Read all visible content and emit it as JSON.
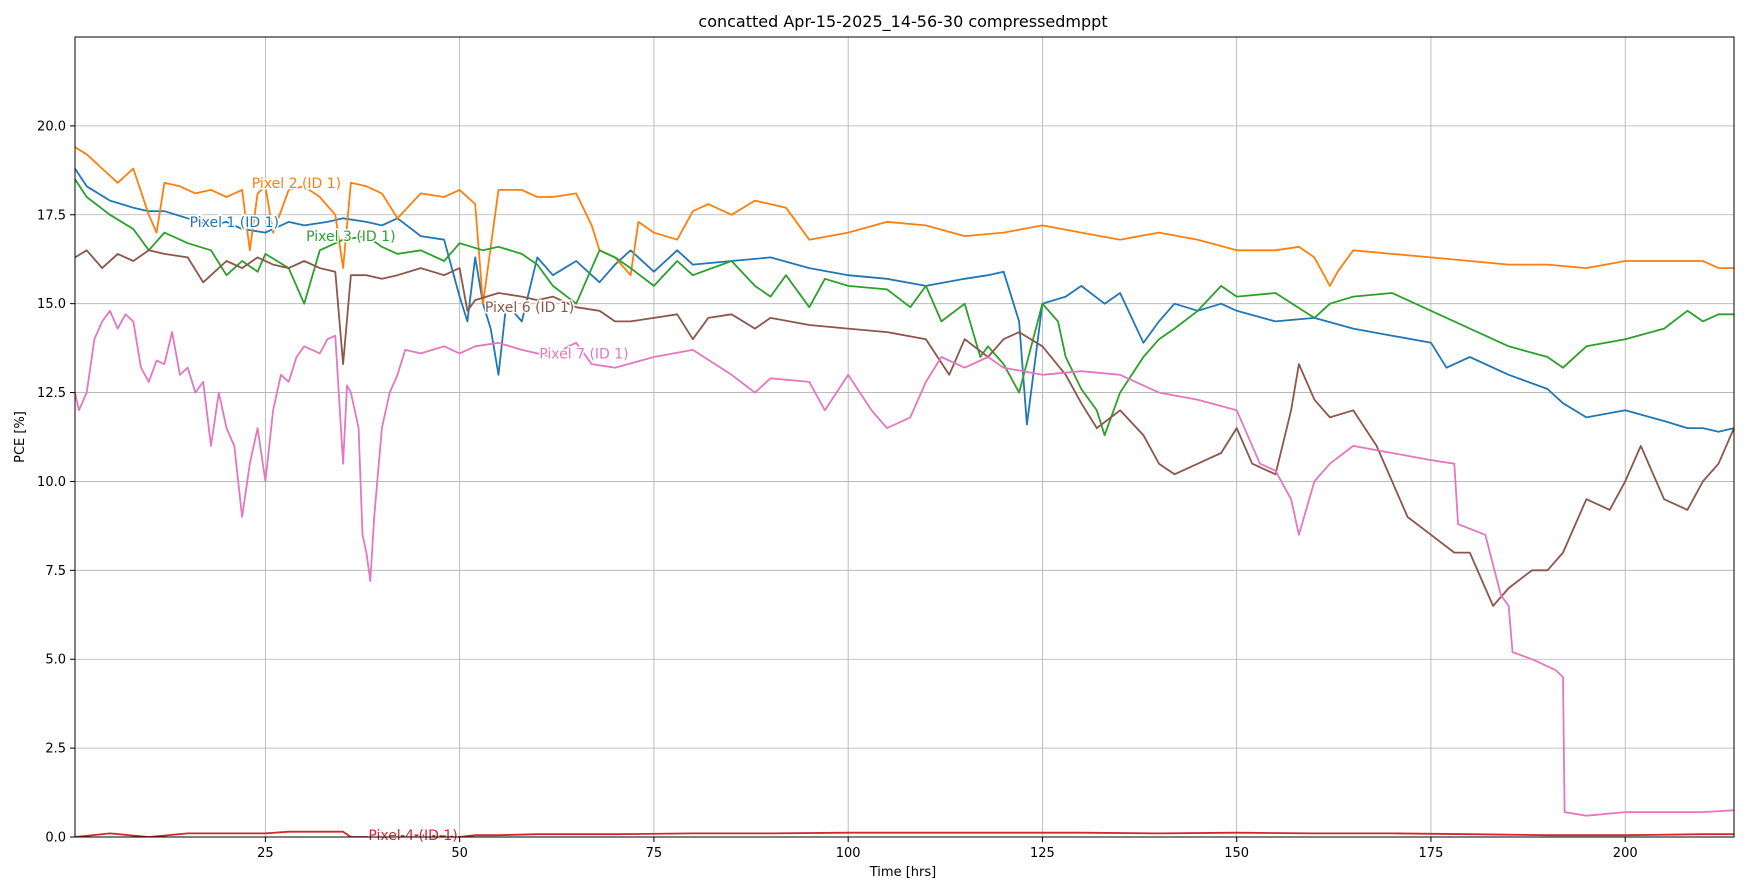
{
  "chart_data": {
    "type": "line",
    "title": "concatted Apr-15-2025_14-56-30 compressedmppt",
    "xlabel": "Time [hrs]",
    "ylabel": "PCE [%]",
    "xlim": [
      0.5,
      214
    ],
    "ylim": [
      0,
      22.5
    ],
    "xticks": [
      25,
      50,
      75,
      100,
      125,
      150,
      175,
      200
    ],
    "yticks": [
      0.0,
      2.5,
      5.0,
      7.5,
      10.0,
      12.5,
      15.0,
      17.5,
      20.0
    ],
    "grid": true,
    "legend": "none (inline labels on lines)",
    "series": [
      {
        "name": "Pixel 1 (ID 1)",
        "color": "#1f77b4",
        "label_at": [
          21,
          17.3
        ],
        "x": [
          0.5,
          2,
          5,
          8,
          10,
          12,
          15,
          18,
          20,
          22,
          25,
          28,
          30,
          33,
          35,
          38,
          40,
          42,
          45,
          48,
          50,
          51,
          52,
          53,
          54,
          55,
          56,
          58,
          60,
          62,
          65,
          68,
          70,
          72,
          75,
          78,
          80,
          85,
          90,
          95,
          100,
          105,
          110,
          115,
          118,
          120,
          122,
          123,
          125,
          128,
          130,
          133,
          135,
          138,
          140,
          142,
          145,
          148,
          150,
          155,
          160,
          165,
          170,
          175,
          177,
          180,
          185,
          190,
          192,
          195,
          200,
          205,
          208,
          210,
          212,
          214
        ],
        "y": [
          18.8,
          18.3,
          17.9,
          17.7,
          17.6,
          17.6,
          17.4,
          17.2,
          17.3,
          17.1,
          17.0,
          17.3,
          17.2,
          17.3,
          17.4,
          17.3,
          17.2,
          17.4,
          16.9,
          16.8,
          15.2,
          14.5,
          16.3,
          15.0,
          14.3,
          13.0,
          15.0,
          14.5,
          16.3,
          15.8,
          16.2,
          15.6,
          16.1,
          16.5,
          15.9,
          16.5,
          16.1,
          16.2,
          16.3,
          16.0,
          15.8,
          15.7,
          15.5,
          15.7,
          15.8,
          15.9,
          14.5,
          11.6,
          15.0,
          15.2,
          15.5,
          15.0,
          15.3,
          13.9,
          14.5,
          15.0,
          14.8,
          15.0,
          14.8,
          14.5,
          14.6,
          14.3,
          14.1,
          13.9,
          13.2,
          13.5,
          13.0,
          12.6,
          12.2,
          11.8,
          12.0,
          11.7,
          11.5,
          11.5,
          11.4,
          11.5
        ]
      },
      {
        "name": "Pixel 2 (ID 1)",
        "color": "#ff7f0e",
        "label_at": [
          29,
          18.4
        ],
        "x": [
          0.5,
          2,
          4,
          6,
          8,
          10,
          11,
          12,
          14,
          16,
          18,
          20,
          22,
          23,
          24,
          25,
          26,
          28,
          30,
          32,
          34,
          35,
          36,
          38,
          40,
          42,
          45,
          48,
          50,
          52,
          53,
          55,
          58,
          60,
          62,
          65,
          67,
          68,
          70,
          72,
          73,
          75,
          78,
          80,
          82,
          85,
          88,
          90,
          92,
          95,
          100,
          105,
          110,
          115,
          120,
          125,
          130,
          135,
          140,
          145,
          150,
          155,
          158,
          160,
          162,
          163,
          165,
          170,
          175,
          180,
          185,
          190,
          195,
          200,
          205,
          210,
          212,
          214
        ],
        "y": [
          19.4,
          19.2,
          18.8,
          18.4,
          18.8,
          17.5,
          17.0,
          18.4,
          18.3,
          18.1,
          18.2,
          18.0,
          18.2,
          16.5,
          18.1,
          18.3,
          17.0,
          18.2,
          18.3,
          18.0,
          17.5,
          16.0,
          18.4,
          18.3,
          18.1,
          17.4,
          18.1,
          18.0,
          18.2,
          17.8,
          15.0,
          18.2,
          18.2,
          18.0,
          18.0,
          18.1,
          17.2,
          16.5,
          16.3,
          15.8,
          17.3,
          17.0,
          16.8,
          17.6,
          17.8,
          17.5,
          17.9,
          17.8,
          17.7,
          16.8,
          17.0,
          17.3,
          17.2,
          16.9,
          17.0,
          17.2,
          17.0,
          16.8,
          17.0,
          16.8,
          16.5,
          16.5,
          16.6,
          16.3,
          15.5,
          15.9,
          16.5,
          16.4,
          16.3,
          16.2,
          16.1,
          16.1,
          16.0,
          16.2,
          16.2,
          16.2,
          16.0,
          16.0
        ]
      },
      {
        "name": "Pixel 3 (ID 1)",
        "color": "#2ca02c",
        "label_at": [
          36,
          16.9
        ],
        "x": [
          0.5,
          2,
          5,
          8,
          10,
          12,
          15,
          18,
          20,
          22,
          24,
          25,
          28,
          30,
          32,
          35,
          38,
          40,
          42,
          45,
          48,
          50,
          53,
          55,
          58,
          60,
          62,
          65,
          67,
          68,
          70,
          72,
          75,
          78,
          80,
          85,
          88,
          90,
          92,
          95,
          97,
          100,
          105,
          108,
          110,
          112,
          115,
          117,
          118,
          120,
          122,
          125,
          127,
          128,
          130,
          132,
          133,
          135,
          138,
          140,
          142,
          145,
          148,
          150,
          155,
          160,
          162,
          165,
          170,
          175,
          180,
          185,
          190,
          192,
          195,
          200,
          205,
          208,
          210,
          212,
          214
        ],
        "y": [
          18.5,
          18.0,
          17.5,
          17.1,
          16.5,
          17.0,
          16.7,
          16.5,
          15.8,
          16.2,
          15.9,
          16.4,
          16.0,
          15.0,
          16.5,
          16.8,
          16.9,
          16.6,
          16.4,
          16.5,
          16.2,
          16.7,
          16.5,
          16.6,
          16.4,
          16.1,
          15.5,
          15.0,
          16.0,
          16.5,
          16.3,
          16.0,
          15.5,
          16.2,
          15.8,
          16.2,
          15.5,
          15.2,
          15.8,
          14.9,
          15.7,
          15.5,
          15.4,
          14.9,
          15.5,
          14.5,
          15.0,
          13.5,
          13.8,
          13.3,
          12.5,
          15.0,
          14.5,
          13.5,
          12.6,
          12.0,
          11.3,
          12.5,
          13.5,
          14.0,
          14.3,
          14.8,
          15.5,
          15.2,
          15.3,
          14.6,
          15.0,
          15.2,
          15.3,
          14.8,
          14.3,
          13.8,
          13.5,
          13.2,
          13.8,
          14.0,
          14.3,
          14.8,
          14.5,
          14.7,
          14.7
        ]
      },
      {
        "name": "Pixel 4 (ID 1)",
        "color": "#d62728",
        "label_at": [
          44,
          0.05
        ],
        "x": [
          0.5,
          5,
          10,
          15,
          20,
          25,
          28,
          30,
          35,
          36,
          40,
          45,
          50,
          52,
          55,
          60,
          70,
          80,
          90,
          100,
          110,
          120,
          130,
          140,
          150,
          160,
          170,
          180,
          190,
          200,
          210,
          214
        ],
        "y": [
          0.0,
          0.1,
          0.0,
          0.1,
          0.1,
          0.1,
          0.15,
          0.15,
          0.15,
          0.0,
          0.0,
          0.05,
          0.0,
          0.05,
          0.05,
          0.08,
          0.08,
          0.1,
          0.1,
          0.12,
          0.12,
          0.12,
          0.12,
          0.1,
          0.12,
          0.1,
          0.1,
          0.08,
          0.05,
          0.05,
          0.08,
          0.08
        ]
      },
      {
        "name": "Pixel 6 (ID 1)",
        "color": "#8c564b",
        "label_at": [
          59,
          14.9
        ],
        "x": [
          0.5,
          2,
          4,
          6,
          8,
          10,
          12,
          15,
          17,
          18,
          20,
          22,
          24,
          26,
          28,
          30,
          32,
          34,
          35,
          36,
          38,
          40,
          42,
          45,
          48,
          50,
          51,
          52,
          55,
          58,
          60,
          62,
          65,
          68,
          70,
          72,
          75,
          78,
          80,
          82,
          85,
          88,
          90,
          95,
          100,
          105,
          110,
          113,
          115,
          118,
          120,
          122,
          125,
          128,
          130,
          132,
          135,
          138,
          140,
          142,
          145,
          148,
          150,
          152,
          155,
          157,
          158,
          160,
          162,
          165,
          168,
          170,
          172,
          175,
          178,
          180,
          182,
          183,
          185,
          188,
          190,
          192,
          195,
          198,
          200,
          202,
          205,
          208,
          210,
          212,
          214
        ],
        "y": [
          16.3,
          16.5,
          16.0,
          16.4,
          16.2,
          16.5,
          16.4,
          16.3,
          15.6,
          15.8,
          16.2,
          16.0,
          16.3,
          16.1,
          16.0,
          16.2,
          16.0,
          15.9,
          13.3,
          15.8,
          15.8,
          15.7,
          15.8,
          16.0,
          15.8,
          16.0,
          14.8,
          15.1,
          15.3,
          15.2,
          15.1,
          15.2,
          14.9,
          14.8,
          14.5,
          14.5,
          14.6,
          14.7,
          14.0,
          14.6,
          14.7,
          14.3,
          14.6,
          14.4,
          14.3,
          14.2,
          14.0,
          13.0,
          14.0,
          13.5,
          14.0,
          14.2,
          13.8,
          13.0,
          12.2,
          11.5,
          12.0,
          11.3,
          10.5,
          10.2,
          10.5,
          10.8,
          11.5,
          10.5,
          10.2,
          12.0,
          13.3,
          12.3,
          11.8,
          12.0,
          11.0,
          10.0,
          9.0,
          8.5,
          8.0,
          8.0,
          7.0,
          6.5,
          7.0,
          7.5,
          7.5,
          8.0,
          9.5,
          9.2,
          10.0,
          11.0,
          9.5,
          9.2,
          10.0,
          10.5,
          11.5
        ]
      },
      {
        "name": "Pixel 7 (ID 1)",
        "color": "#e377c2",
        "label_at": [
          66,
          13.6
        ],
        "x": [
          0.5,
          1,
          2,
          3,
          4,
          5,
          6,
          7,
          8,
          9,
          10,
          11,
          12,
          13,
          14,
          15,
          16,
          17,
          18,
          19,
          20,
          21,
          22,
          23,
          24,
          25,
          26,
          27,
          28,
          29,
          30,
          32,
          33,
          34,
          35,
          35.5,
          36,
          37,
          37.5,
          38,
          38.5,
          39,
          40,
          41,
          42,
          43,
          45,
          48,
          50,
          52,
          55,
          58,
          60,
          62,
          64,
          65,
          67,
          70,
          75,
          80,
          85,
          88,
          90,
          95,
          97,
          100,
          103,
          105,
          108,
          110,
          112,
          115,
          118,
          120,
          125,
          130,
          135,
          140,
          145,
          150,
          153,
          155,
          157,
          158,
          160,
          162,
          165,
          170,
          175,
          178,
          178.5,
          182,
          184,
          185,
          185.5,
          188,
          190,
          191,
          192,
          192.2,
          195,
          200,
          205,
          210,
          214
        ],
        "y": [
          12.5,
          12.0,
          12.5,
          14.0,
          14.5,
          14.8,
          14.3,
          14.7,
          14.5,
          13.2,
          12.8,
          13.4,
          13.3,
          14.2,
          13.0,
          13.2,
          12.5,
          12.8,
          11.0,
          12.5,
          11.5,
          11.0,
          9.0,
          10.5,
          11.5,
          10.0,
          12.0,
          13.0,
          12.8,
          13.5,
          13.8,
          13.6,
          14.0,
          14.1,
          10.5,
          12.7,
          12.5,
          11.5,
          8.5,
          8.0,
          7.2,
          9.0,
          11.5,
          12.5,
          13.0,
          13.7,
          13.6,
          13.8,
          13.6,
          13.8,
          13.9,
          13.7,
          13.6,
          13.5,
          13.8,
          13.9,
          13.3,
          13.2,
          13.5,
          13.7,
          13.0,
          12.5,
          12.9,
          12.8,
          12.0,
          13.0,
          12.0,
          11.5,
          11.8,
          12.8,
          13.5,
          13.2,
          13.5,
          13.2,
          13.0,
          13.1,
          13.0,
          12.5,
          12.3,
          12.0,
          10.5,
          10.3,
          9.5,
          8.5,
          10.0,
          10.5,
          11.0,
          10.8,
          10.6,
          10.5,
          8.8,
          8.5,
          6.8,
          6.5,
          5.2,
          5.0,
          4.8,
          4.7,
          4.5,
          0.7,
          0.6,
          0.7,
          0.7,
          0.7,
          0.75
        ]
      }
    ]
  }
}
